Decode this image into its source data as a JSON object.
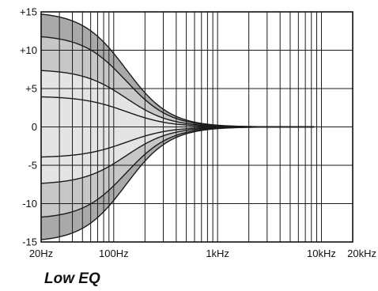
{
  "chart_data": {
    "type": "line",
    "title": "Low EQ",
    "xlabel": "",
    "ylabel": "",
    "x_scale": "log",
    "xlim": [
      20,
      20000
    ],
    "ylim": [
      -15,
      15
    ],
    "x_tick_labels": [
      {
        "value": 20,
        "label": "20Hz"
      },
      {
        "value": 100,
        "label": "100Hz"
      },
      {
        "value": 1000,
        "label": "1kHz"
      },
      {
        "value": 10000,
        "label": "10kHz"
      },
      {
        "value": 20000,
        "label": "20kHz"
      }
    ],
    "y_tick_labels": [
      {
        "value": 15,
        "label": "+15"
      },
      {
        "value": 10,
        "label": "+10"
      },
      {
        "value": 5,
        "label": "+5"
      },
      {
        "value": 0,
        "label": "0"
      },
      {
        "value": -5,
        "label": "-5"
      },
      {
        "value": -10,
        "label": "-10"
      },
      {
        "value": -15,
        "label": "-15"
      }
    ],
    "grid": true,
    "shelf_curves_gain_db": [
      15,
      12,
      7.5,
      4,
      -4,
      -7.5,
      -12,
      -15
    ],
    "colors": {
      "outer_band": "#a9a9a9",
      "middle_band": "#c7c7c7",
      "inner_band": "#e4e4e4",
      "line": "#1a1a1a"
    }
  }
}
